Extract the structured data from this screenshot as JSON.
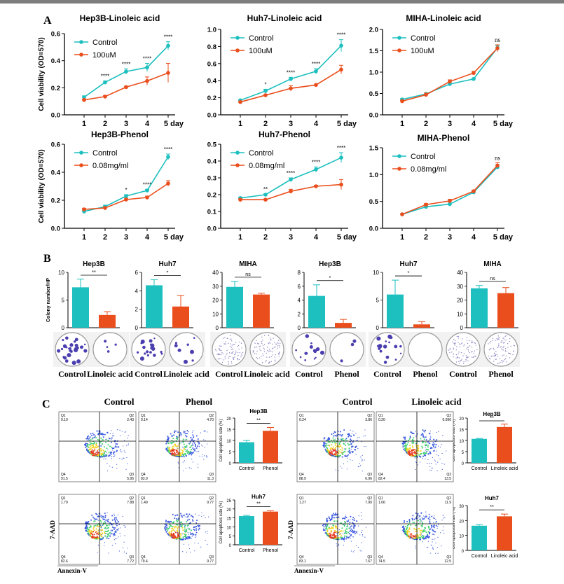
{
  "panel_labels": {
    "a": "A",
    "b": "B",
    "c": "C"
  },
  "colors": {
    "control": "#1dbfbf",
    "treat": "#ea4e1c",
    "axis": "#000000"
  },
  "chart_data": [
    {
      "id": "a1",
      "type": "line",
      "title": "Hep3B-Linoleic acid",
      "ylabel": "Cell viability (OD=570)",
      "categories": [
        "1",
        "2",
        "3",
        "4",
        "5 day"
      ],
      "ylim": [
        0,
        0.6
      ],
      "yticks": [
        "0.0",
        "0.2",
        "0.4",
        "0.6"
      ],
      "series": [
        {
          "name": "Control",
          "values": [
            0.13,
            0.24,
            0.32,
            0.35,
            0.51
          ],
          "err": [
            0.01,
            0.01,
            0.02,
            0.03,
            0.03
          ]
        },
        {
          "name": "100uM",
          "values": [
            0.11,
            0.135,
            0.205,
            0.25,
            0.31
          ],
          "err": [
            0.005,
            0.007,
            0.007,
            0.03,
            0.07
          ]
        }
      ],
      "sig": [
        "",
        "****",
        "****",
        "****",
        "****"
      ]
    },
    {
      "id": "a2",
      "type": "line",
      "title": "Huh7-Linoleic acid",
      "ylabel": "",
      "categories": [
        "1",
        "2",
        "3",
        "4",
        "5 day"
      ],
      "ylim": [
        0,
        1.0
      ],
      "yticks": [
        "0.0",
        "0.2",
        "0.4",
        "0.6",
        "0.8",
        "1.0"
      ],
      "series": [
        {
          "name": "Control",
          "values": [
            0.17,
            0.28,
            0.42,
            0.51,
            0.81
          ],
          "err": [
            0.01,
            0.02,
            0.02,
            0.03,
            0.07
          ]
        },
        {
          "name": "100uM",
          "values": [
            0.15,
            0.23,
            0.31,
            0.35,
            0.53
          ],
          "err": [
            0.01,
            0.01,
            0.03,
            0.01,
            0.05
          ]
        }
      ],
      "sig": [
        "",
        "*",
        "****",
        "****",
        "****"
      ]
    },
    {
      "id": "a3",
      "type": "line",
      "title": "MIHA-Linoleic acid",
      "ylabel": "",
      "categories": [
        "1",
        "2",
        "3",
        "4",
        "5 day"
      ],
      "ylim": [
        0,
        2.0
      ],
      "yticks": [
        "0.0",
        "0.5",
        "1.0",
        "1.5",
        "2.0"
      ],
      "series": [
        {
          "name": "Control",
          "values": [
            0.36,
            0.49,
            0.72,
            0.84,
            1.57
          ],
          "err": [
            0.02,
            0.02,
            0.02,
            0.02,
            0.05
          ]
        },
        {
          "name": "100uM",
          "values": [
            0.32,
            0.47,
            0.78,
            0.98,
            1.56
          ],
          "err": [
            0.02,
            0.04,
            0.04,
            0.04,
            0.08
          ]
        }
      ],
      "sig": [
        "",
        "",
        "",
        "",
        "ns"
      ]
    },
    {
      "id": "a4",
      "type": "line",
      "title": "Hep3B-Phenol",
      "ylabel": "Cell viability (OD=570)",
      "categories": [
        "1",
        "2",
        "3",
        "4",
        "5 day"
      ],
      "ylim": [
        0,
        0.6
      ],
      "yticks": [
        "0.0",
        "0.2",
        "0.4",
        "0.6"
      ],
      "series": [
        {
          "name": "Control",
          "values": [
            0.12,
            0.155,
            0.23,
            0.27,
            0.51
          ],
          "err": [
            0.008,
            0.01,
            0.01,
            0.008,
            0.02
          ]
        },
        {
          "name": "0.08mg/ml",
          "values": [
            0.135,
            0.145,
            0.205,
            0.22,
            0.32
          ],
          "err": [
            0.008,
            0.008,
            0.01,
            0.01,
            0.02
          ]
        }
      ],
      "sig": [
        "",
        "",
        "*",
        "****",
        "****"
      ]
    },
    {
      "id": "a5",
      "type": "line",
      "title": "Huh7-Phenol",
      "ylabel": "",
      "categories": [
        "1",
        "2",
        "3",
        "4",
        "5 day"
      ],
      "ylim": [
        0,
        0.5
      ],
      "yticks": [
        "0.0",
        "0.1",
        "0.2",
        "0.3",
        "0.4",
        "0.5"
      ],
      "series": [
        {
          "name": "Control",
          "values": [
            0.18,
            0.2,
            0.29,
            0.35,
            0.42
          ],
          "err": [
            0.005,
            0.005,
            0.01,
            0.015,
            0.03
          ]
        },
        {
          "name": "0.08mg/ml",
          "values": [
            0.17,
            0.17,
            0.22,
            0.25,
            0.26
          ],
          "err": [
            0.005,
            0.005,
            0.012,
            0.005,
            0.03
          ]
        }
      ],
      "sig": [
        "",
        "**",
        "****",
        "****",
        "****"
      ]
    },
    {
      "id": "a6",
      "type": "line",
      "title": "MIHA-Phenol",
      "ylabel": "",
      "categories": [
        "1",
        "2",
        "3",
        "4",
        "5 day"
      ],
      "ylim": [
        0,
        1.5
      ],
      "yticks": [
        "0.0",
        "0.5",
        "1.0",
        "1.5"
      ],
      "series": [
        {
          "name": "Control",
          "values": [
            0.26,
            0.4,
            0.45,
            0.67,
            1.14
          ],
          "err": [
            0.01,
            0.02,
            0.02,
            0.02,
            0.04
          ]
        },
        {
          "name": "0.08mg/ml",
          "values": [
            0.26,
            0.44,
            0.51,
            0.69,
            1.17
          ],
          "err": [
            0.01,
            0.02,
            0.03,
            0.02,
            0.05
          ]
        }
      ],
      "sig": [
        "",
        "",
        "",
        "",
        "ns"
      ]
    },
    {
      "id": "b1",
      "type": "bar",
      "title": "Hep3B",
      "ylabel": "Colony number/HP",
      "ylim": [
        0,
        10
      ],
      "yticks": [
        "0",
        "5",
        "10"
      ],
      "categories": [
        "Control",
        "Linoleic acid"
      ],
      "values": [
        7.3,
        2.3
      ],
      "err": [
        1.5,
        0.6
      ],
      "sig": "**"
    },
    {
      "id": "b2",
      "type": "bar",
      "title": "Huh7",
      "ylabel": "",
      "ylim": [
        0,
        6
      ],
      "yticks": [
        "0",
        "2",
        "4",
        "6"
      ],
      "categories": [
        "Control",
        "Linoleic acid"
      ],
      "values": [
        4.6,
        2.3
      ],
      "err": [
        0.6,
        1.2
      ],
      "sig": "*"
    },
    {
      "id": "b3",
      "type": "bar",
      "title": "MIHA",
      "ylabel": "",
      "ylim": [
        0,
        40
      ],
      "yticks": [
        "0",
        "10",
        "20",
        "30",
        "40"
      ],
      "categories": [
        "Control",
        "Linoleic acid"
      ],
      "values": [
        29.5,
        24
      ],
      "err": [
        4,
        1
      ],
      "sig": "ns"
    },
    {
      "id": "b4",
      "type": "bar",
      "title": "Hep3B",
      "ylabel": "",
      "ylim": [
        0,
        8
      ],
      "yticks": [
        "0",
        "2",
        "4",
        "6",
        "8"
      ],
      "categories": [
        "Control",
        "Phenol"
      ],
      "values": [
        4.6,
        0.7
      ],
      "err": [
        1.6,
        0.5
      ],
      "sig": "*"
    },
    {
      "id": "b5",
      "type": "bar",
      "title": "Huh7",
      "ylabel": "",
      "ylim": [
        0,
        10
      ],
      "yticks": [
        "0",
        "5",
        "10"
      ],
      "categories": [
        "Control",
        "Phenol"
      ],
      "values": [
        6,
        0.6
      ],
      "err": [
        2.6,
        0.5
      ],
      "sig": "*"
    },
    {
      "id": "b6",
      "type": "bar",
      "title": "MIHA",
      "ylabel": "",
      "ylim": [
        0,
        40
      ],
      "yticks": [
        "0",
        "10",
        "20",
        "30",
        "40"
      ],
      "categories": [
        "Control",
        "Phenol"
      ],
      "values": [
        28.5,
        25
      ],
      "err": [
        2,
        4
      ],
      "sig": "ns"
    },
    {
      "id": "c1",
      "type": "bar",
      "title": "Hep3B",
      "ylabel": "Cell apoptosis rate (%)",
      "ylim": [
        0,
        20
      ],
      "yticks": [
        "0",
        "5",
        "10",
        "15",
        "20"
      ],
      "categories": [
        "Control",
        "Phenol"
      ],
      "values": [
        9.2,
        14.3
      ],
      "err": [
        0.8,
        1.5
      ],
      "sig": "**"
    },
    {
      "id": "c2",
      "type": "bar",
      "title": "Huh7",
      "ylabel": "Cell apoptosis rate (%)",
      "ylim": [
        0,
        25
      ],
      "yticks": [
        "0",
        "5",
        "10",
        "15",
        "20",
        "25"
      ],
      "categories": [
        "Control",
        "Phenol"
      ],
      "values": [
        16,
        18.5
      ],
      "err": [
        0.4,
        0.5
      ],
      "sig": "**"
    },
    {
      "id": "c3",
      "type": "bar",
      "title": "Hep3B",
      "ylabel": "Cell apoptosis rate (%)",
      "ylim": [
        0,
        20
      ],
      "yticks": [
        "0",
        "5",
        "10",
        "15",
        "20"
      ],
      "categories": [
        "Control",
        "Linoleic acid"
      ],
      "values": [
        10.7,
        16
      ],
      "err": [
        0.2,
        1.3
      ],
      "sig": "**"
    },
    {
      "id": "c4",
      "type": "bar",
      "title": "Huh7",
      "ylabel": "Cell apoptosis rate (%)",
      "ylim": [
        0,
        30
      ],
      "yticks": [
        "0",
        "10",
        "20",
        "30"
      ],
      "categories": [
        "Control",
        "Linoleic acid"
      ],
      "values": [
        16.5,
        22.8
      ],
      "err": [
        0.8,
        1.5
      ],
      "sig": "**"
    }
  ],
  "colony_labels": [
    [
      "Control",
      "Linoleic acid"
    ],
    [
      "Control",
      "Linoleic acid"
    ],
    [
      "Control",
      "Linoleic acid"
    ],
    [
      "Control",
      "Phenol"
    ],
    [
      "Control",
      "Phenol"
    ],
    [
      "Control",
      "Phenol"
    ]
  ],
  "flow": {
    "group_titles": [
      "Control",
      "Phenol",
      "Control",
      "Linoleic acid"
    ],
    "x_axis": "Annexin-V",
    "y_axis": "7-AAD",
    "plots": [
      {
        "q1": "Q1",
        "v1": "0.10",
        "q2": "Q2",
        "v2": "2.43",
        "q3": "Q3",
        "v3": "5.95",
        "q4": "Q4",
        "v4": "91.5"
      },
      {
        "q1": "Q1",
        "v1": "0.14",
        "q2": "Q2",
        "v2": "4.70",
        "q3": "Q3",
        "v3": "11.3",
        "q4": "Q4",
        "v4": "83.9"
      },
      {
        "q1": "Q1",
        "v1": "0.24",
        "q2": "Q2",
        "v2": "3.86",
        "q3": "Q3",
        "v3": "6.96",
        "q4": "Q4",
        "v4": "88.9"
      },
      {
        "q1": "Q1",
        "v1": "0.20",
        "q2": "Q2",
        "v2": "0.096",
        "q3": "Q3",
        "v3": "13.5",
        "q4": "Q4",
        "v4": "82.4"
      },
      {
        "q1": "Q1",
        "v1": "1.79",
        "q2": "Q2",
        "v2": "7.88",
        "q3": "Q3",
        "v3": "7.72",
        "q4": "Q4",
        "v4": "82.6"
      },
      {
        "q1": "Q1",
        "v1": "1.49",
        "q2": "Q2",
        "v2": "9.77",
        "q3": "Q3",
        "v3": "9.77",
        "q4": "Q4",
        "v4": "79.4"
      },
      {
        "q1": "Q1",
        "v1": "1.27",
        "q2": "Q2",
        "v2": "7.90",
        "q3": "Q3",
        "v3": "7.67",
        "q4": "Q4",
        "v4": "83.1"
      },
      {
        "q1": "Q1",
        "v1": "1.06",
        "q2": "Q2",
        "v2": "11.9",
        "q3": "Q3",
        "v3": "12.5",
        "q4": "Q4",
        "v4": "74.5"
      }
    ]
  }
}
